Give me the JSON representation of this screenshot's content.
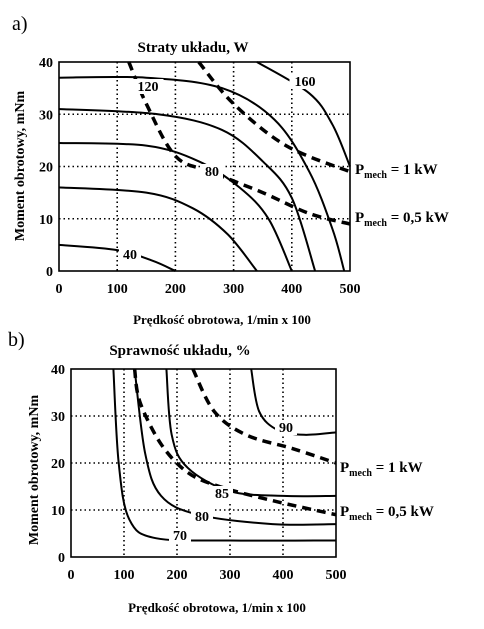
{
  "chart_data": [
    {
      "panel_label": "a)",
      "type": "line",
      "title": "Straty układu, W",
      "xlabel": "Prędkość obrotowa, 1/min x 100",
      "ylabel": "Moment obrotowy, mNm",
      "xlim": [
        0,
        500
      ],
      "ylim": [
        0,
        40
      ],
      "xticks": [
        "0",
        "100",
        "200",
        "300",
        "400",
        "500"
      ],
      "yticks": [
        "0",
        "10",
        "20",
        "30",
        "40"
      ],
      "grid": "dotted",
      "contours": [
        {
          "label": "40",
          "points": [
            [
              0,
              5
            ],
            [
              100,
              4
            ],
            [
              160,
              2
            ],
            [
              200,
              0
            ]
          ]
        },
        {
          "label": "",
          "points": [
            [
              0,
              16
            ],
            [
              150,
              15
            ],
            [
              230,
              12
            ],
            [
              290,
              7
            ],
            [
              340,
              0
            ]
          ]
        },
        {
          "label": "80",
          "points": [
            [
              0,
              24.5
            ],
            [
              150,
              24
            ],
            [
              240,
              21
            ],
            [
              310,
              16
            ],
            [
              360,
              10
            ],
            [
              400,
              0
            ]
          ]
        },
        {
          "label": "",
          "points": [
            [
              0,
              31
            ],
            [
              170,
              30
            ],
            [
              280,
              27
            ],
            [
              350,
              21
            ],
            [
              400,
              14
            ],
            [
              440,
              0
            ]
          ]
        },
        {
          "label": "120",
          "points": [
            [
              0,
              37
            ],
            [
              150,
              37
            ],
            [
              280,
              35
            ],
            [
              370,
              29
            ],
            [
              430,
              19
            ],
            [
              470,
              8
            ],
            [
              490,
              0
            ]
          ]
        },
        {
          "label": "160",
          "points": [
            [
              340,
              40
            ],
            [
              430,
              34
            ],
            [
              470,
              28
            ],
            [
              500,
              20
            ]
          ]
        }
      ],
      "dashed_series": [
        {
          "name": "P",
          "sub": "mech",
          "rest": " = 1 kW",
          "points": [
            [
              240,
              40
            ],
            [
              300,
              32
            ],
            [
              390,
              24
            ],
            [
              500,
              19
            ]
          ]
        },
        {
          "name": "P",
          "sub": "mech",
          "rest": " = 0,5 kW",
          "points": [
            [
              120,
              40
            ],
            [
              150,
              32
            ],
            [
              200,
              22
            ],
            [
              260,
              19
            ],
            [
              350,
              15
            ],
            [
              430,
              11
            ],
            [
              500,
              9
            ]
          ]
        }
      ]
    },
    {
      "panel_label": "b)",
      "type": "line",
      "title": "Sprawność układu, %",
      "xlabel": "Prędkość obrotowa, 1/min x 100",
      "ylabel": "Moment obrotowy, mNm",
      "xlim": [
        0,
        500
      ],
      "ylim": [
        0,
        40
      ],
      "xticks": [
        "0",
        "100",
        "200",
        "300",
        "400",
        "500"
      ],
      "yticks": [
        "0",
        "10",
        "20",
        "30",
        "40"
      ],
      "grid": "dotted",
      "contours": [
        {
          "label": "70",
          "points": [
            [
              80,
              40
            ],
            [
              90,
              20
            ],
            [
              110,
              8
            ],
            [
              160,
              4
            ],
            [
              300,
              3.5
            ],
            [
              500,
              3.5
            ]
          ]
        },
        {
          "label": "80",
          "points": [
            [
              120,
              40
            ],
            [
              140,
              22
            ],
            [
              170,
              13
            ],
            [
              240,
              9
            ],
            [
              380,
              7
            ],
            [
              500,
              7
            ]
          ]
        },
        {
          "label": "85",
          "points": [
            [
              180,
              40
            ],
            [
              190,
              26
            ],
            [
              220,
              19
            ],
            [
              300,
              14
            ],
            [
              400,
              13
            ],
            [
              500,
              13
            ]
          ]
        },
        {
          "label": "90",
          "points": [
            [
              340,
              40
            ],
            [
              355,
              31
            ],
            [
              390,
              27
            ],
            [
              440,
              26
            ],
            [
              500,
              26.5
            ]
          ]
        }
      ],
      "dashed_series": [
        {
          "name": "P",
          "sub": "mech",
          "rest": " = 1 kW",
          "points": [
            [
              230,
              40
            ],
            [
              270,
              31
            ],
            [
              330,
              26
            ],
            [
              420,
              23
            ],
            [
              500,
              20
            ]
          ]
        },
        {
          "name": "P",
          "sub": "mech",
          "rest": " = 0,5 kW",
          "points": [
            [
              120,
              40
            ],
            [
              130,
              33
            ],
            [
              170,
              24
            ],
            [
              220,
              18
            ],
            [
              280,
              15
            ],
            [
              380,
              12
            ],
            [
              500,
              9
            ]
          ]
        }
      ]
    }
  ]
}
